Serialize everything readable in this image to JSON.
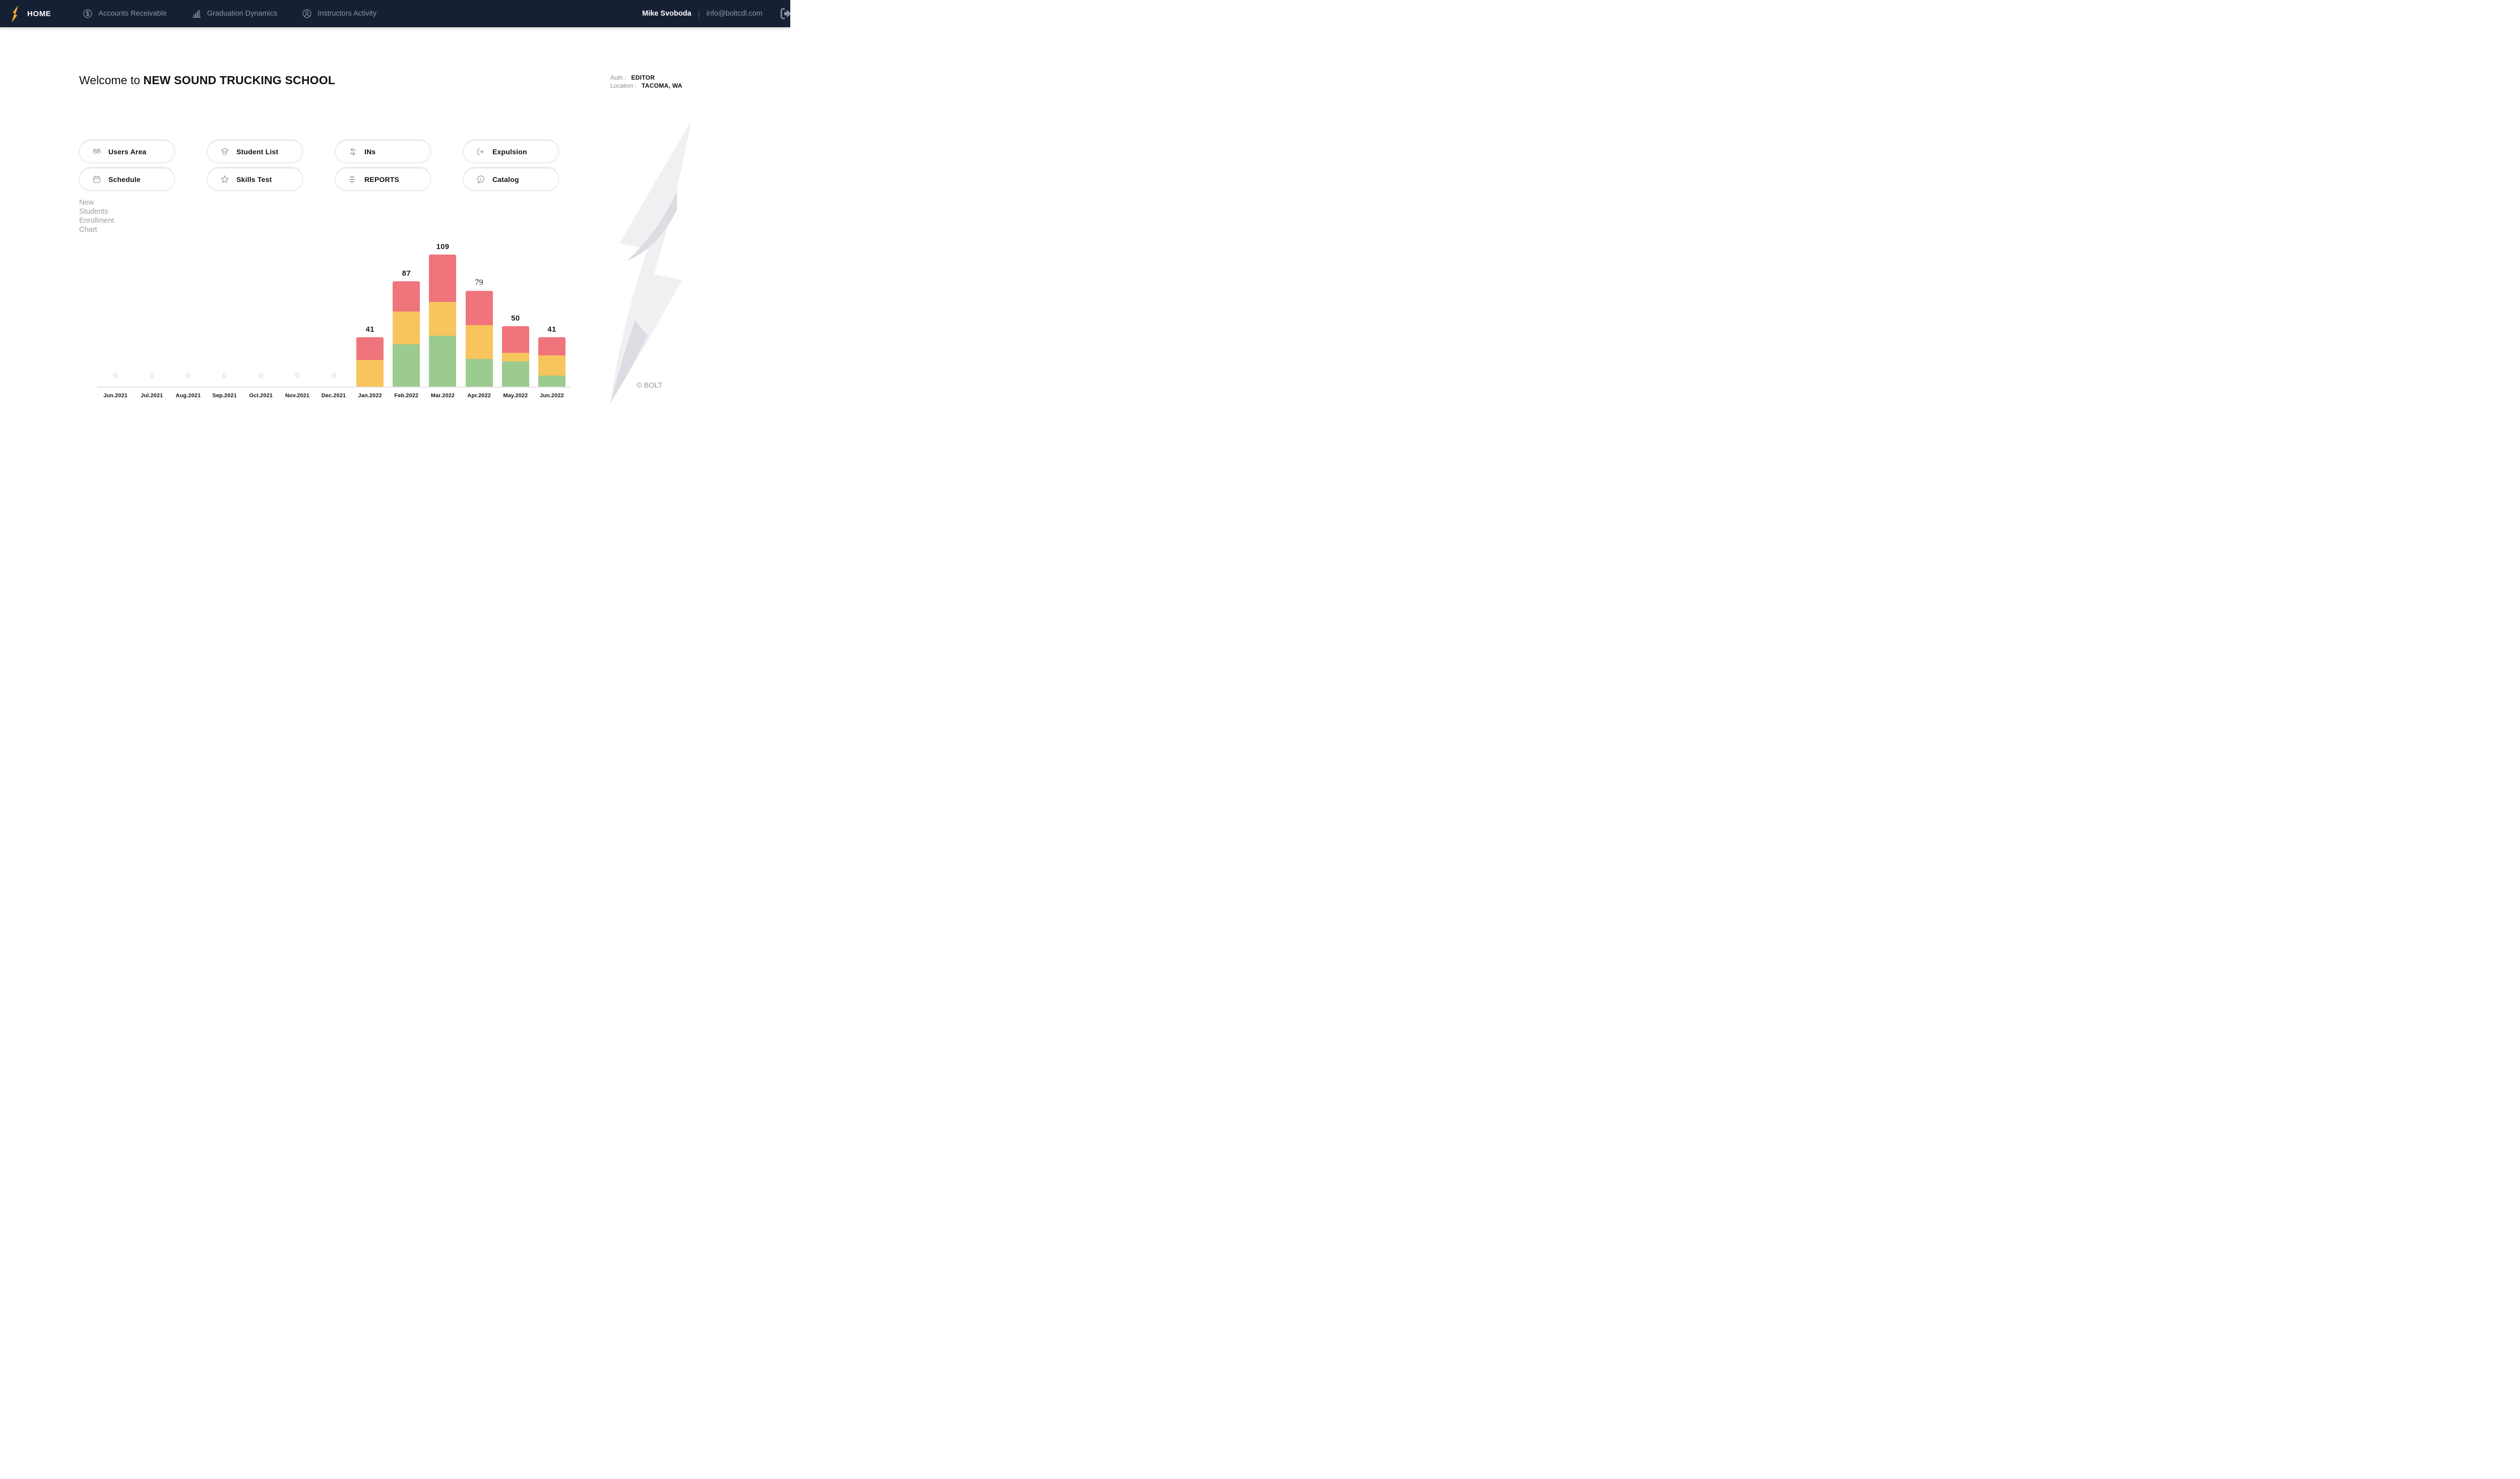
{
  "navbar": {
    "brand": {
      "label": "HOME",
      "logo_icon": "bolt-icon",
      "logo_color": "#F4A62A"
    },
    "items": [
      {
        "label": "Accounts Receivable",
        "icon": "dollar-circle"
      },
      {
        "label": "Graduation Dynamics",
        "icon": "bar-chart"
      },
      {
        "label": "Instructors Activity",
        "icon": "person-circle"
      }
    ],
    "user": {
      "name": "Mike Svoboda",
      "separator": "|",
      "email": "info@boltcdl.com",
      "logout_icon": "logout"
    },
    "background_color": "#152035",
    "muted_text_color": "#8b93a7"
  },
  "header": {
    "welcome_prefix": "Welcome to",
    "school_name": "NEW SOUND TRUCKING SCHOOL",
    "auth_label": "Auth :",
    "auth_value": "EDITOR",
    "location_label": "Location :",
    "location_value": "TACOMA, WA"
  },
  "quick_actions": [
    {
      "label": "Users Area",
      "icon": "users"
    },
    {
      "label": "Student List",
      "icon": "graduation-cap"
    },
    {
      "label": "INs",
      "icon": "transfer-arrows"
    },
    {
      "label": "Expulsion",
      "icon": "arrow-out"
    },
    {
      "label": "Schedule",
      "icon": "calendar"
    },
    {
      "label": "Skills Test",
      "icon": "star"
    },
    {
      "label": "REPORTS",
      "icon": "list"
    },
    {
      "label": "Catalog",
      "icon": "info-bubble"
    }
  ],
  "chart_note": {
    "lines": [
      "New",
      "Students",
      "Enrollment",
      "Chart"
    ]
  },
  "chart_data": {
    "type": "bar",
    "stacked": true,
    "title": "New Students Enrollment Chart",
    "categories": [
      "Jun.2021",
      "Jul.2021",
      "Aug.2021",
      "Sep.2021",
      "Oct.2021",
      "Nov.2021",
      "Dec.2021",
      "Jan.2022",
      "Feb.2022",
      "Mar.2022",
      "Apr.2022",
      "May.2022",
      "Jun.2022"
    ],
    "series": [
      {
        "name": "green",
        "color": "#9ccb8f",
        "values": [
          0,
          0,
          0,
          0,
          0,
          0,
          0,
          0,
          35,
          42,
          23,
          21,
          9
        ]
      },
      {
        "name": "yellow",
        "color": "#f8c45d",
        "values": [
          0,
          0,
          0,
          0,
          0,
          0,
          0,
          22,
          27,
          28,
          28,
          7,
          17
        ]
      },
      {
        "name": "red",
        "color": "#ef747c",
        "values": [
          0,
          0,
          0,
          0,
          0,
          0,
          0,
          19,
          25,
          39,
          28,
          22,
          15
        ]
      }
    ],
    "totals": [
      0,
      0,
      0,
      0,
      0,
      0,
      0,
      41,
      87,
      109,
      79,
      50,
      41
    ],
    "zero_label": "0",
    "ylim": [
      0,
      120
    ],
    "grid": false,
    "legend": "none",
    "serif_label_categories": [
      "Apr.2022"
    ],
    "axis_color": "#e4e4e6",
    "zero_label_color": "#d3d3d3"
  },
  "footer": {
    "copyright": "© BOLT"
  }
}
